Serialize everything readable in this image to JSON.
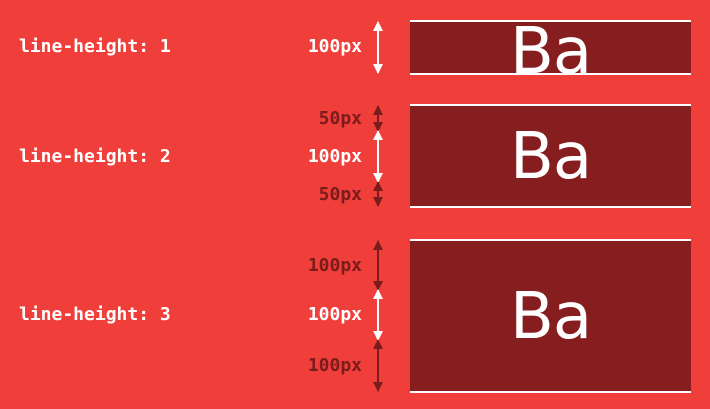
{
  "colors": {
    "background": "#f03e3a",
    "box": "#861d1f",
    "light": "#ffffff",
    "dark": "#7a1c1c"
  },
  "rows": [
    {
      "label": "line-height: 1",
      "sample": "Ba",
      "content_size": "100px"
    },
    {
      "label": "line-height: 2",
      "sample": "Ba",
      "half_leading": "50px",
      "content_size": "100px"
    },
    {
      "label": "line-height: 3",
      "sample": "Ba",
      "half_leading": "100px",
      "content_size": "100px"
    }
  ],
  "icons": {
    "white_arrow": "double-headed-arrow-icon",
    "dark_arrow": "double-headed-arrow-icon"
  }
}
